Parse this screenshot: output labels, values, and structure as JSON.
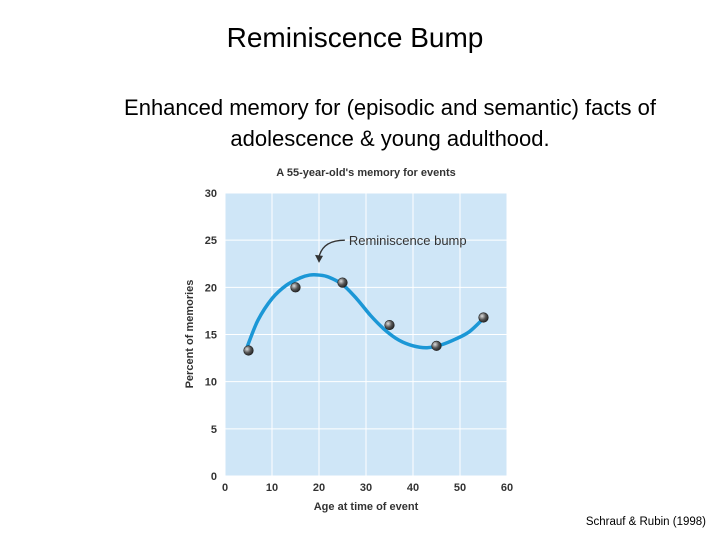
{
  "slide": {
    "title": "Reminiscence Bump",
    "subtitle_line1": "Enhanced memory for (episodic and semantic) facts of",
    "subtitle_line2": "adolescence & young adulthood.",
    "citation": "Schrauf & Rubin (1998)"
  },
  "colors": {
    "plot_background": "#cfe6f7",
    "grid": "#ffffff",
    "curve": "#1b97d6",
    "marker": "#555555"
  },
  "chart_data": {
    "type": "line",
    "title": "A 55-year-old's memory for events",
    "xlabel": "Age at time of event",
    "ylabel": "Percent of memories",
    "xlim": [
      0,
      60
    ],
    "ylim": [
      0,
      30
    ],
    "xticks": [
      0,
      10,
      20,
      30,
      40,
      50,
      60
    ],
    "yticks": [
      0,
      5,
      10,
      15,
      20,
      25,
      30
    ],
    "grid": true,
    "points": [
      {
        "x": 5,
        "y": 13.3
      },
      {
        "x": 15,
        "y": 20.0
      },
      {
        "x": 25,
        "y": 20.5
      },
      {
        "x": 35,
        "y": 16.0
      },
      {
        "x": 45,
        "y": 13.8
      },
      {
        "x": 55,
        "y": 16.8
      }
    ],
    "smooth_curve": [
      [
        4.8,
        13.8
      ],
      [
        7,
        16.5
      ],
      [
        10,
        18.8
      ],
      [
        13,
        20.2
      ],
      [
        16,
        21.0
      ],
      [
        18,
        21.3
      ],
      [
        20,
        21.3
      ],
      [
        22,
        21.1
      ],
      [
        25,
        20.3
      ],
      [
        28,
        18.8
      ],
      [
        31,
        17.0
      ],
      [
        34,
        15.5
      ],
      [
        37,
        14.4
      ],
      [
        40,
        13.8
      ],
      [
        43,
        13.6
      ],
      [
        46,
        13.9
      ],
      [
        49,
        14.5
      ],
      [
        52,
        15.3
      ],
      [
        55,
        16.7
      ]
    ],
    "annotation": {
      "text": "Reminiscence bump",
      "arrow_from": [
        25.5,
        25.0
      ],
      "arrow_to": [
        20.0,
        22.7
      ]
    }
  }
}
